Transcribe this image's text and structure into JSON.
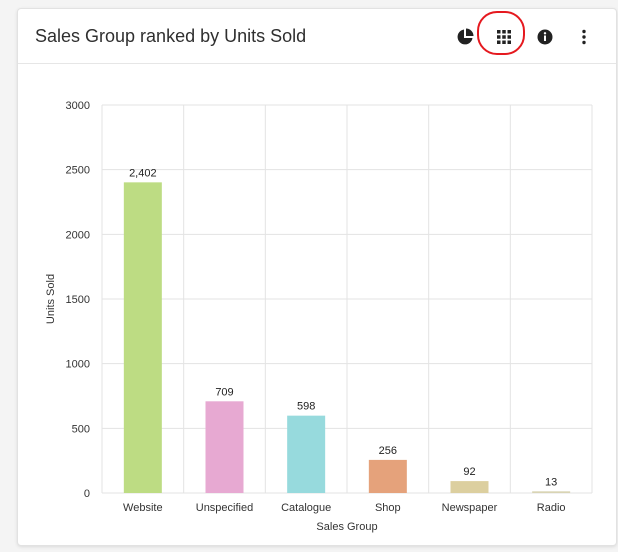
{
  "widget": {
    "title": "Sales Group ranked by Units Sold",
    "icons": {
      "pie": "pie-chart-icon",
      "grid": "grid-view-icon",
      "info": "info-icon",
      "more": "more-vertical-icon"
    },
    "highlight_color": "#e5191f"
  },
  "chart_data": {
    "type": "bar",
    "categories": [
      "Website",
      "Unspecified",
      "Catalogue",
      "Shop",
      "Newspaper",
      "Radio"
    ],
    "values": [
      2402,
      709,
      598,
      256,
      92,
      13
    ],
    "value_labels": [
      "2,402",
      "709",
      "598",
      "256",
      "92",
      "13"
    ],
    "colors": [
      "#bddc83",
      "#e7a9d2",
      "#97dadd",
      "#e5a27b",
      "#dccf9f",
      "#d9d4b4"
    ],
    "xlabel": "Sales Group",
    "ylabel": "Units Sold",
    "ylim": [
      0,
      3000
    ],
    "yticks": [
      0,
      500,
      1000,
      1500,
      2000,
      2500,
      3000
    ],
    "grid": true
  }
}
